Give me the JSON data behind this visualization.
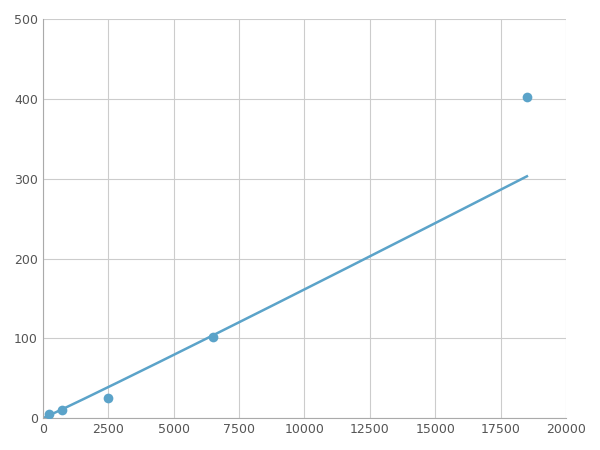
{
  "x_points": [
    250,
    750,
    2500,
    6500,
    18500
  ],
  "y_points": [
    5,
    10,
    25,
    102,
    402
  ],
  "line_color": "#5ba3c9",
  "marker_color": "#5ba3c9",
  "marker_size": 7,
  "line_width": 1.8,
  "xlim": [
    0,
    20000
  ],
  "ylim": [
    0,
    500
  ],
  "xticks": [
    0,
    2500,
    5000,
    7500,
    10000,
    12500,
    15000,
    17500,
    20000
  ],
  "yticks": [
    0,
    100,
    200,
    300,
    400,
    500
  ],
  "xtick_labels": [
    "0",
    "2500",
    "5000",
    "7500",
    "10000",
    "12500",
    "15000",
    "17500",
    "20000"
  ],
  "ytick_labels": [
    "0",
    "100",
    "200",
    "300",
    "400",
    "500"
  ],
  "grid_color": "#cccccc",
  "grid_linewidth": 0.8,
  "background_color": "#ffffff",
  "spine_color": "#aaaaaa",
  "tick_fontsize": 9,
  "fig_width": 6.0,
  "fig_height": 4.5,
  "dpi": 100
}
